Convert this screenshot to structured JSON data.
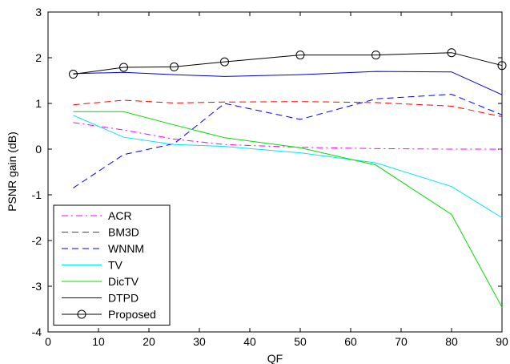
{
  "chart_data": {
    "type": "line",
    "title": "",
    "xlabel": "QF",
    "ylabel": "PSNR gain (dB)",
    "xlim": [
      0,
      90
    ],
    "ylim": [
      -4,
      3
    ],
    "xticks": [
      0,
      10,
      20,
      30,
      40,
      50,
      60,
      70,
      80,
      90
    ],
    "yticks": [
      -4,
      -3,
      -2,
      -1,
      0,
      1,
      2,
      3
    ],
    "grid": false,
    "legend_position": "lower-left",
    "series": [
      {
        "name": "ACR",
        "color": "#ff00ff",
        "dash": "dash-dot",
        "marker": "none",
        "x": [
          5,
          15,
          25,
          35,
          50,
          65,
          80,
          90
        ],
        "y": [
          0.58,
          0.42,
          0.22,
          0.1,
          0.04,
          0.01,
          0.0,
          0.0
        ]
      },
      {
        "name": "BM3D",
        "color": "#ff0000",
        "dash": "dashed",
        "marker": "none",
        "x": [
          5,
          15,
          25,
          35,
          50,
          65,
          80,
          90
        ],
        "y": [
          0.97,
          1.07,
          1.01,
          1.03,
          1.04,
          1.02,
          0.94,
          0.71
        ]
      },
      {
        "name": "WNNM",
        "color": "#0000ff",
        "dash": "dashed",
        "marker": "none",
        "x": [
          5,
          15,
          25,
          35,
          50,
          65,
          80,
          90
        ],
        "y": [
          -0.85,
          -0.12,
          0.12,
          1.0,
          0.65,
          1.1,
          1.2,
          0.75
        ]
      },
      {
        "name": "TV",
        "color": "#00e5ee",
        "dash": "solid",
        "marker": "none",
        "x": [
          5,
          15,
          25,
          35,
          50,
          65,
          80,
          90
        ],
        "y": [
          0.74,
          0.26,
          0.1,
          0.06,
          -0.08,
          -0.3,
          -0.82,
          -1.5
        ]
      },
      {
        "name": "DicTV",
        "color": "#00dd00",
        "dash": "solid",
        "marker": "none",
        "x": [
          5,
          15,
          25,
          35,
          50,
          65,
          80,
          90
        ],
        "y": [
          0.82,
          0.82,
          0.53,
          0.25,
          0.03,
          -0.35,
          -1.43,
          -3.46
        ]
      },
      {
        "name": "DTPD",
        "color": "#0000cc",
        "dash": "solid",
        "marker": "none",
        "x": [
          5,
          15,
          25,
          35,
          50,
          65,
          80,
          90
        ],
        "y": [
          1.65,
          1.68,
          1.63,
          1.59,
          1.63,
          1.7,
          1.69,
          1.19
        ]
      },
      {
        "name": "Proposed",
        "color": "#000000",
        "dash": "solid",
        "marker": "circle",
        "x": [
          5,
          15,
          25,
          35,
          50,
          65,
          80,
          90
        ],
        "y": [
          1.64,
          1.79,
          1.8,
          1.91,
          2.06,
          2.06,
          2.11,
          1.83
        ]
      }
    ]
  }
}
